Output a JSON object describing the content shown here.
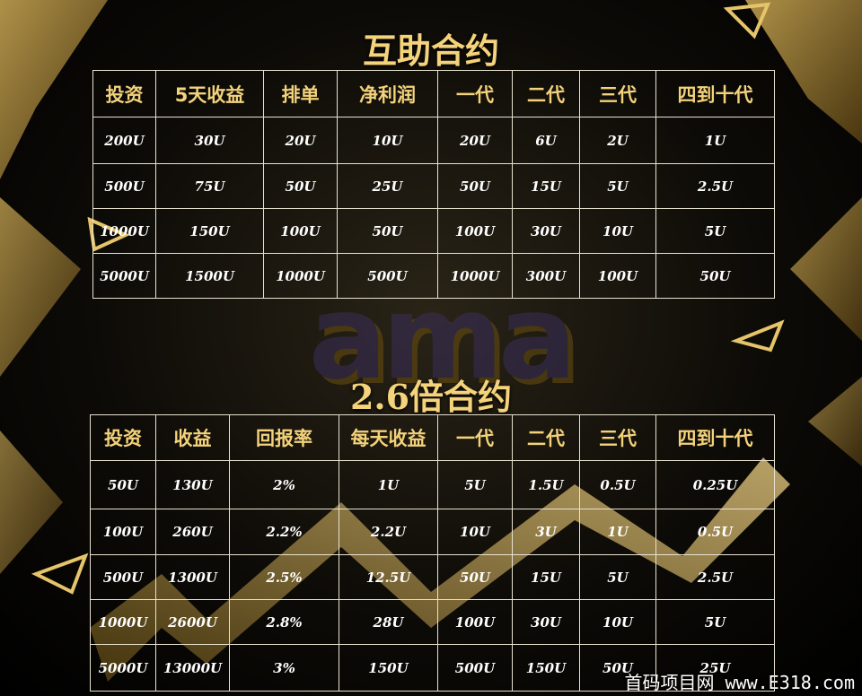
{
  "logo": "ama",
  "sections": [
    {
      "title": "互助合约",
      "headers": [
        "投资",
        "5天收益",
        "排单",
        "净利润",
        "一代",
        "二代",
        "三代",
        "四到十代"
      ],
      "rows": [
        [
          "200U",
          "30U",
          "20U",
          "10U",
          "20U",
          "6U",
          "2U",
          "1U"
        ],
        [
          "500U",
          "75U",
          "50U",
          "25U",
          "50U",
          "15U",
          "5U",
          "2.5U"
        ],
        [
          "1000U",
          "150U",
          "100U",
          "50U",
          "100U",
          "30U",
          "10U",
          "5U"
        ],
        [
          "5000U",
          "1500U",
          "1000U",
          "500U",
          "1000U",
          "300U",
          "100U",
          "50U"
        ]
      ]
    },
    {
      "title": "2.6倍合约",
      "headers": [
        "投资",
        "收益",
        "回报率",
        "每天收益",
        "一代",
        "二代",
        "三代",
        "四到十代"
      ],
      "rows": [
        [
          "50U",
          "130U",
          "2%",
          "1U",
          "5U",
          "1.5U",
          "0.5U",
          "0.25U"
        ],
        [
          "100U",
          "260U",
          "2.2%",
          "2.2U",
          "10U",
          "3U",
          "1U",
          "0.5U"
        ],
        [
          "500U",
          "1300U",
          "2.5%",
          "12.5U",
          "50U",
          "15U",
          "5U",
          "2.5U"
        ],
        [
          "1000U",
          "2600U",
          "2.8%",
          "28U",
          "100U",
          "30U",
          "10U",
          "5U"
        ],
        [
          "5000U",
          "13000U",
          "3%",
          "150U",
          "500U",
          "150U",
          "50U",
          "25U"
        ]
      ]
    }
  ],
  "watermark": "首码项目网 www.E318.com"
}
